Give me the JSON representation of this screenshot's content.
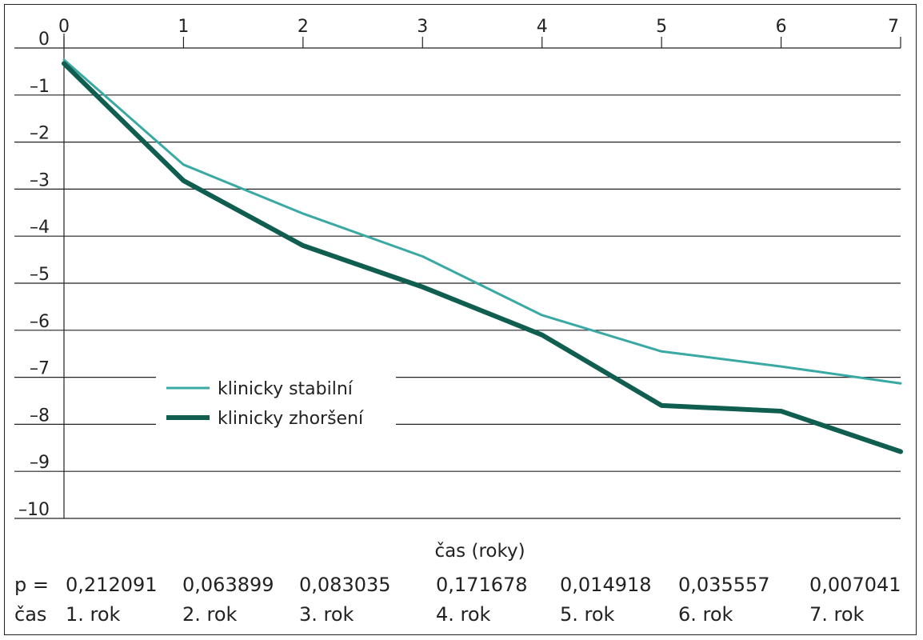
{
  "chart_data": {
    "type": "line",
    "xlabel": "čas (roky)",
    "ylabel": "",
    "title": "",
    "xlim": [
      0,
      7
    ],
    "ylim": [
      -10,
      0
    ],
    "x_ticks": [
      0,
      1,
      2,
      3,
      4,
      5,
      6,
      7
    ],
    "y_ticks": [
      0,
      -1,
      -2,
      -3,
      -4,
      -5,
      -6,
      -7,
      -8,
      -9,
      -10
    ],
    "y_tick_labels": [
      "0",
      "–1",
      "–2",
      "–3",
      "–4",
      "–5",
      "–6",
      "–7",
      "–8",
      "–9",
      "–10"
    ],
    "grid": "horizontal",
    "legend_placement": "bottom-left",
    "series": [
      {
        "name": "klinicky stabilní",
        "color": "#3aa9a4",
        "x": [
          0,
          1,
          2,
          3,
          4,
          5,
          6,
          7
        ],
        "values": [
          -0.25,
          -2.48,
          -3.52,
          -4.43,
          -5.68,
          -6.45,
          -6.77,
          -7.13
        ]
      },
      {
        "name": "klinicky zhoršení",
        "color": "#0f5e50",
        "x": [
          0,
          1,
          2,
          3,
          4,
          5,
          6,
          7
        ],
        "values": [
          -0.33,
          -2.82,
          -4.2,
          -5.08,
          -6.1,
          -7.6,
          -7.72,
          -8.58
        ]
      }
    ],
    "table": {
      "p_label": "p =",
      "cas_label": "čas",
      "p_values": [
        "0,212091",
        "0,063899",
        "0,083035",
        "0,171678",
        "0,014918",
        "0,035557",
        "0,007041"
      ],
      "years": [
        "1. rok",
        "2. rok",
        "3. rok",
        "4. rok",
        "5. rok",
        "6. rok",
        "7. rok"
      ]
    }
  }
}
